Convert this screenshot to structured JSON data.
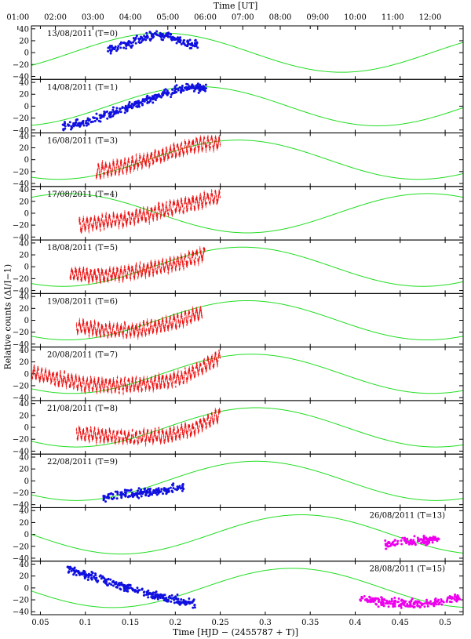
{
  "figure": {
    "top_axis_title": "Time [UT]",
    "bottom_axis_title": "Time [HJD − (2455787 + T)]",
    "y_axis_title": "Relative counts (ΔI/I−1)"
  },
  "chart_data": {
    "type": "scatter",
    "x_range": [
      0.04,
      0.52
    ],
    "x_ticks": [
      0.05,
      0.1,
      0.15,
      0.2,
      0.25,
      0.3,
      0.35,
      0.4,
      0.45,
      0.5
    ],
    "x_tick_labels": [
      "0.05",
      "0.1",
      "0.15",
      "0.2",
      "0.25",
      "0.3",
      "0.35",
      "0.4",
      "0.45",
      "0.5"
    ],
    "top_axis_ticks": [
      "01:00",
      "02:00",
      "03:00",
      "04:00",
      "05:00",
      "06:00",
      "07:00",
      "08:00",
      "09:00",
      "10:00",
      "11:00",
      "12:00"
    ],
    "y_range": [
      -45,
      45
    ],
    "y_ticks": [
      -40,
      -20,
      0,
      20,
      40
    ],
    "y_tick_labels": [
      "−40",
      "−20",
      "0",
      "20",
      "40"
    ],
    "model_amplitude": 33,
    "model_period": 0.4,
    "colors": {
      "model": "#22dd22",
      "blue": "#1010e0",
      "red": "#ee1111",
      "magenta": "#ee00ee"
    },
    "panels": [
      {
        "label": "13/08/2011 (T=0)",
        "label_pos": "top-left",
        "model_peak": 0.185,
        "series": [
          {
            "color": "blue",
            "style": "dots",
            "x_start": 0.125,
            "x_end": 0.225,
            "points": [
              [
                0.125,
                5
              ],
              [
                0.14,
                10
              ],
              [
                0.16,
                22
              ],
              [
                0.18,
                30
              ],
              [
                0.195,
                28
              ],
              [
                0.21,
                18
              ],
              [
                0.225,
                12
              ]
            ]
          }
        ]
      },
      {
        "label": "14/08/2011 (T=1)",
        "label_pos": "top-left",
        "model_peak": 0.225,
        "series": [
          {
            "color": "blue",
            "style": "dots",
            "x_start": 0.075,
            "x_end": 0.235,
            "points": [
              [
                0.075,
                -33
              ],
              [
                0.1,
                -28
              ],
              [
                0.13,
                -12
              ],
              [
                0.16,
                5
              ],
              [
                0.19,
                22
              ],
              [
                0.215,
                33
              ],
              [
                0.235,
                30
              ]
            ]
          }
        ]
      },
      {
        "label": "16/08/2011 (T=3)",
        "label_pos": "top-left",
        "model_peak": 0.27,
        "series": [
          {
            "color": "red",
            "style": "bars",
            "x_start": 0.112,
            "x_end": 0.25,
            "points": [
              [
                0.112,
                -20
              ],
              [
                0.14,
                -12
              ],
              [
                0.17,
                0
              ],
              [
                0.2,
                15
              ],
              [
                0.225,
                27
              ],
              [
                0.25,
                28
              ]
            ]
          }
        ]
      },
      {
        "label": "17/08/2011 (T=4)",
        "label_pos": "top-left",
        "model_peak": 0.48,
        "series": [
          {
            "color": "red",
            "style": "bars",
            "x_start": 0.093,
            "x_end": 0.25,
            "points": [
              [
                0.093,
                -20
              ],
              [
                0.12,
                -15
              ],
              [
                0.15,
                -8
              ],
              [
                0.18,
                2
              ],
              [
                0.21,
                15
              ],
              [
                0.25,
                28
              ]
            ]
          }
        ]
      },
      {
        "label": "18/08/2011 (T=5)",
        "label_pos": "top-left",
        "model_peak": 0.275,
        "series": [
          {
            "color": "red",
            "style": "bars",
            "x_start": 0.083,
            "x_end": 0.233,
            "points": [
              [
                0.083,
                -12
              ],
              [
                0.11,
                -15
              ],
              [
                0.14,
                -12
              ],
              [
                0.17,
                -4
              ],
              [
                0.2,
                5
              ],
              [
                0.233,
                22
              ]
            ]
          }
        ]
      },
      {
        "label": "19/08/2011 (T=6)",
        "label_pos": "top-left",
        "model_peak": 0.28,
        "series": [
          {
            "color": "red",
            "style": "bars",
            "x_start": 0.09,
            "x_end": 0.23,
            "points": [
              [
                0.09,
                -10
              ],
              [
                0.12,
                -16
              ],
              [
                0.15,
                -18
              ],
              [
                0.18,
                -10
              ],
              [
                0.205,
                0
              ],
              [
                0.23,
                14
              ]
            ]
          }
        ]
      },
      {
        "label": "20/08/2011 (T=7)",
        "label_pos": "top-left",
        "model_peak": 0.285,
        "series": [
          {
            "color": "red",
            "style": "bars",
            "x_start": 0.04,
            "x_end": 0.25,
            "points": [
              [
                0.04,
                2
              ],
              [
                0.07,
                -8
              ],
              [
                0.1,
                -18
              ],
              [
                0.14,
                -20
              ],
              [
                0.18,
                -15
              ],
              [
                0.21,
                -5
              ],
              [
                0.25,
                28
              ]
            ]
          }
        ]
      },
      {
        "label": "21/08/2011 (T=8)",
        "label_pos": "top-left",
        "model_peak": 0.29,
        "series": [
          {
            "color": "red",
            "style": "bars",
            "x_start": 0.09,
            "x_end": 0.25,
            "points": [
              [
                0.09,
                -10
              ],
              [
                0.12,
                -14
              ],
              [
                0.15,
                -17
              ],
              [
                0.19,
                -14
              ],
              [
                0.22,
                -2
              ],
              [
                0.25,
                22
              ]
            ]
          }
        ]
      },
      {
        "label": "22/08/2011 (T=9)",
        "label_pos": "top-left",
        "model_peak": 0.29,
        "series": [
          {
            "color": "blue",
            "style": "dots",
            "x_start": 0.12,
            "x_end": 0.21,
            "points": [
              [
                0.12,
                -28
              ],
              [
                0.15,
                -22
              ],
              [
                0.18,
                -18
              ],
              [
                0.21,
                -10
              ]
            ]
          }
        ]
      },
      {
        "label": "26/08/2011 (T=13)",
        "label_pos": "top-right",
        "model_peak": 0.34,
        "series": [
          {
            "color": "magenta",
            "style": "dots",
            "x_start": 0.433,
            "x_end": 0.493,
            "points": [
              [
                0.433,
                -15
              ],
              [
                0.46,
                -12
              ],
              [
                0.493,
                -8
              ]
            ]
          }
        ]
      },
      {
        "label": "28/08/2011 (T=15)",
        "label_pos": "top-right",
        "model_peak": 0.33,
        "series": [
          {
            "color": "blue",
            "style": "dots",
            "x_start": 0.08,
            "x_end": 0.222,
            "points": [
              [
                0.08,
                33
              ],
              [
                0.11,
                18
              ],
              [
                0.14,
                3
              ],
              [
                0.17,
                -10
              ],
              [
                0.2,
                -20
              ],
              [
                0.222,
                -28
              ]
            ]
          },
          {
            "color": "magenta",
            "style": "dots",
            "x_start": 0.405,
            "x_end": 0.517,
            "points": [
              [
                0.405,
                -18
              ],
              [
                0.44,
                -25
              ],
              [
                0.47,
                -27
              ],
              [
                0.5,
                -22
              ],
              [
                0.517,
                -14
              ]
            ]
          }
        ]
      }
    ]
  }
}
